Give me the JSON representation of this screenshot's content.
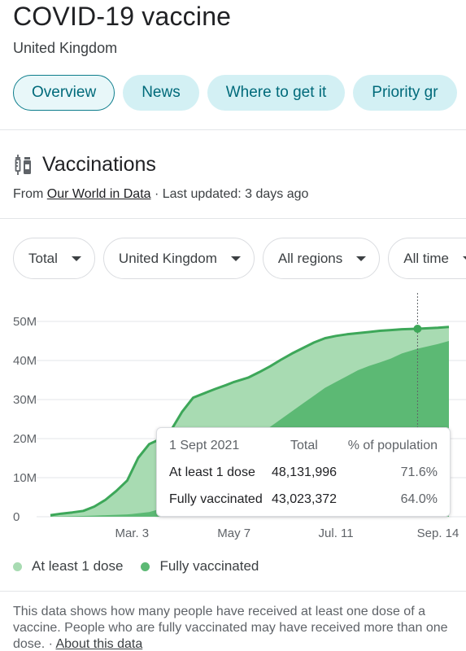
{
  "header": {
    "title": "COVID-19 vaccine",
    "location": "United Kingdom"
  },
  "tabs": [
    {
      "label": "Overview",
      "active": true
    },
    {
      "label": "News"
    },
    {
      "label": "Where to get it"
    },
    {
      "label": "Priority gr"
    }
  ],
  "section": {
    "icon": "syringe-vial-icon",
    "title": "Vaccinations",
    "source_prefix": "From ",
    "source_link": "Our World in Data",
    "updated": " · Last updated: 3 days ago"
  },
  "filters": [
    {
      "label": "Total"
    },
    {
      "label": "United Kingdom"
    },
    {
      "label": "All regions"
    },
    {
      "label": "All time"
    }
  ],
  "colors": {
    "at_least_1_dose": "#a8dbb2",
    "fully_vaccinated": "#5cb974",
    "line": "#3da759"
  },
  "tooltip": {
    "date": "1 Sept 2021",
    "col_total": "Total",
    "col_percent": "% of population",
    "rows": [
      {
        "label": "At least 1 dose",
        "total": "48,131,996",
        "percent": "71.6%"
      },
      {
        "label": "Fully vaccinated",
        "total": "43,023,372",
        "percent": "64.0%"
      }
    ]
  },
  "legend": [
    {
      "label": "At least 1 dose",
      "color": "#a8dbb2"
    },
    {
      "label": "Fully vaccinated",
      "color": "#5cb974"
    }
  ],
  "footer": {
    "note": "This data shows how many people have received at least one dose of a vaccine. People who are fully vaccinated may have received more than one dose.",
    "sep": " · ",
    "link": "About this data"
  },
  "chart_data": {
    "type": "area",
    "x": [
      "2021-01-10",
      "2021-01-17",
      "2021-01-24",
      "2021-01-31",
      "2021-02-07",
      "2021-02-14",
      "2021-02-21",
      "2021-02-28",
      "2021-03-03",
      "2021-03-07",
      "2021-03-14",
      "2021-03-21",
      "2021-03-28",
      "2021-04-04",
      "2021-04-11",
      "2021-04-18",
      "2021-04-25",
      "2021-05-02",
      "2021-05-07",
      "2021-05-16",
      "2021-05-23",
      "2021-05-30",
      "2021-06-06",
      "2021-06-13",
      "2021-06-20",
      "2021-06-27",
      "2021-07-04",
      "2021-07-11",
      "2021-07-18",
      "2021-07-25",
      "2021-08-01",
      "2021-08-08",
      "2021-08-15",
      "2021-08-22",
      "2021-09-01",
      "2021-09-14",
      "2021-09-21"
    ],
    "series": [
      {
        "name": "At least 1 dose",
        "values": [
          0.4,
          0.8,
          1.1,
          1.5,
          2.6,
          4.3,
          6.6,
          9.3,
          11.8,
          15.1,
          18.6,
          19.9,
          22.2,
          26.9,
          30.5,
          31.6,
          32.7,
          33.7,
          34.5,
          35.6,
          37.0,
          38.5,
          40.2,
          41.8,
          43.2,
          44.6,
          45.7,
          46.3,
          46.7,
          47.0,
          47.3,
          47.6,
          47.8,
          48.0,
          48.13,
          48.4,
          48.6
        ]
      },
      {
        "name": "Fully vaccinated",
        "values": [
          0.1,
          0.1,
          0.15,
          0.2,
          0.3,
          0.4,
          0.5,
          0.6,
          0.7,
          0.9,
          1.2,
          2.0,
          3.2,
          5.3,
          8.0,
          10.5,
          13.0,
          15.5,
          18.0,
          19.5,
          21.0,
          23.0,
          25.0,
          27.0,
          29.0,
          31.0,
          33.0,
          34.5,
          36.0,
          37.5,
          38.6,
          39.5,
          40.5,
          41.8,
          43.02,
          44.2,
          45.0
        ]
      }
    ],
    "x_tick_labels": [
      "Mar. 3",
      "May 7",
      "Jul. 11",
      "Sep. 14"
    ],
    "x_tick_positions": [
      "2021-03-03",
      "2021-05-07",
      "2021-07-11",
      "2021-09-14"
    ],
    "y_tick_labels": [
      "0",
      "10M",
      "20M",
      "30M",
      "40M",
      "50M"
    ],
    "y_ticks": [
      0,
      10,
      20,
      30,
      40,
      50
    ],
    "ylim": [
      0,
      50
    ],
    "y_unit": "millions",
    "grid": "horizontal",
    "legend": "bottom",
    "highlight_x": "2021-09-01"
  }
}
